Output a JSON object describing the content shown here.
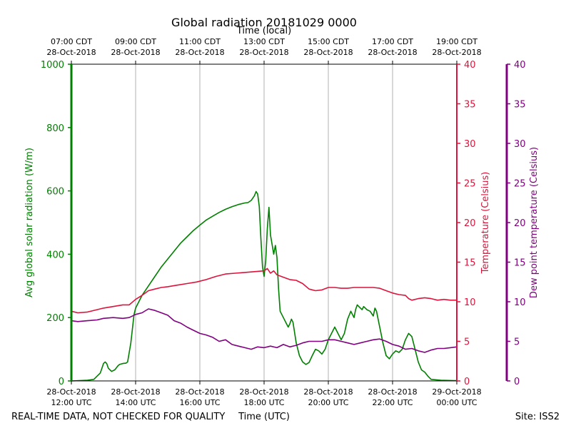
{
  "chart_data": {
    "type": "line",
    "title": "Global radiation 20181029 0000",
    "top_axis_label": "Time (local)",
    "xlabel": "Time (UTC)",
    "ylabel_left": "Avg global solar radiation (W/m)",
    "ylabel_right": "Temperature (Celsius)",
    "ylabel_far_right": "Dew point temperature (Celsius)",
    "footer_left": "REAL-TIME DATA, NOT CHECKED FOR QUALITY",
    "footer_right": "Site: ISS2",
    "x_range_hours": [
      0,
      12
    ],
    "ylim_left": [
      0,
      1000
    ],
    "ylim_right": [
      0,
      40
    ],
    "ylim_far_right": [
      0,
      40
    ],
    "left_ticks": [
      "0",
      "200",
      "400",
      "600",
      "800",
      "1000"
    ],
    "right_ticks": [
      "0",
      "5",
      "10",
      "15",
      "20",
      "25",
      "30",
      "35",
      "40"
    ],
    "bottom_ticks": [
      {
        "line1": "28-Oct-2018",
        "line2": "12:00 UTC"
      },
      {
        "line1": "28-Oct-2018",
        "line2": "14:00 UTC"
      },
      {
        "line1": "28-Oct-2018",
        "line2": "16:00 UTC"
      },
      {
        "line1": "28-Oct-2018",
        "line2": "18:00 UTC"
      },
      {
        "line1": "28-Oct-2018",
        "line2": "20:00 UTC"
      },
      {
        "line1": "28-Oct-2018",
        "line2": "22:00 UTC"
      },
      {
        "line1": "29-Oct-2018",
        "line2": "00:00 UTC"
      }
    ],
    "top_ticks": [
      {
        "line1": "07:00 CDT",
        "line2": "28-Oct-2018"
      },
      {
        "line1": "09:00 CDT",
        "line2": "28-Oct-2018"
      },
      {
        "line1": "11:00 CDT",
        "line2": "28-Oct-2018"
      },
      {
        "line1": "13:00 CDT",
        "line2": "28-Oct-2018"
      },
      {
        "line1": "15:00 CDT",
        "line2": "28-Oct-2018"
      },
      {
        "line1": "17:00 CDT",
        "line2": "28-Oct-2018"
      },
      {
        "line1": "19:00 CDT",
        "line2": "28-Oct-2018"
      }
    ],
    "grid": "vertical",
    "series": [
      {
        "name": "Avg global solar radiation",
        "axis": "left",
        "color": "#008000",
        "points": [
          [
            0,
            0
          ],
          [
            0.5,
            2
          ],
          [
            0.7,
            5
          ],
          [
            0.8,
            15
          ],
          [
            0.9,
            25
          ],
          [
            0.95,
            40
          ],
          [
            1.0,
            55
          ],
          [
            1.05,
            60
          ],
          [
            1.1,
            55
          ],
          [
            1.15,
            40
          ],
          [
            1.25,
            30
          ],
          [
            1.35,
            35
          ],
          [
            1.45,
            48
          ],
          [
            1.5,
            52
          ],
          [
            1.6,
            55
          ],
          [
            1.7,
            56
          ],
          [
            1.75,
            60
          ],
          [
            1.85,
            120
          ],
          [
            1.95,
            210
          ],
          [
            2.0,
            230
          ],
          [
            2.2,
            270
          ],
          [
            2.4,
            300
          ],
          [
            2.6,
            330
          ],
          [
            2.8,
            360
          ],
          [
            3.0,
            385
          ],
          [
            3.2,
            410
          ],
          [
            3.4,
            435
          ],
          [
            3.6,
            455
          ],
          [
            3.8,
            475
          ],
          [
            4.0,
            492
          ],
          [
            4.2,
            508
          ],
          [
            4.4,
            520
          ],
          [
            4.6,
            532
          ],
          [
            4.8,
            542
          ],
          [
            5.0,
            550
          ],
          [
            5.2,
            557
          ],
          [
            5.4,
            562
          ],
          [
            5.5,
            563
          ],
          [
            5.6,
            570
          ],
          [
            5.7,
            585
          ],
          [
            5.75,
            598
          ],
          [
            5.8,
            590
          ],
          [
            5.85,
            550
          ],
          [
            5.9,
            450
          ],
          [
            5.95,
            360
          ],
          [
            6.0,
            330
          ],
          [
            6.05,
            380
          ],
          [
            6.1,
            480
          ],
          [
            6.15,
            548
          ],
          [
            6.2,
            460
          ],
          [
            6.25,
            430
          ],
          [
            6.3,
            400
          ],
          [
            6.35,
            428
          ],
          [
            6.4,
            390
          ],
          [
            6.45,
            290
          ],
          [
            6.5,
            220
          ],
          [
            6.6,
            200
          ],
          [
            6.7,
            180
          ],
          [
            6.75,
            170
          ],
          [
            6.8,
            180
          ],
          [
            6.85,
            195
          ],
          [
            6.9,
            185
          ],
          [
            7.0,
            120
          ],
          [
            7.1,
            80
          ],
          [
            7.2,
            60
          ],
          [
            7.3,
            52
          ],
          [
            7.4,
            58
          ],
          [
            7.5,
            80
          ],
          [
            7.6,
            100
          ],
          [
            7.7,
            95
          ],
          [
            7.8,
            85
          ],
          [
            7.9,
            100
          ],
          [
            8.0,
            130
          ],
          [
            8.1,
            150
          ],
          [
            8.2,
            170
          ],
          [
            8.3,
            150
          ],
          [
            8.4,
            130
          ],
          [
            8.5,
            150
          ],
          [
            8.6,
            195
          ],
          [
            8.7,
            220
          ],
          [
            8.8,
            200
          ],
          [
            8.85,
            225
          ],
          [
            8.9,
            240
          ],
          [
            9.0,
            230
          ],
          [
            9.05,
            225
          ],
          [
            9.1,
            235
          ],
          [
            9.2,
            225
          ],
          [
            9.3,
            220
          ],
          [
            9.4,
            205
          ],
          [
            9.45,
            230
          ],
          [
            9.5,
            220
          ],
          [
            9.6,
            170
          ],
          [
            9.7,
            120
          ],
          [
            9.8,
            80
          ],
          [
            9.9,
            70
          ],
          [
            10.0,
            85
          ],
          [
            10.1,
            95
          ],
          [
            10.2,
            90
          ],
          [
            10.3,
            100
          ],
          [
            10.4,
            130
          ],
          [
            10.5,
            150
          ],
          [
            10.6,
            140
          ],
          [
            10.7,
            100
          ],
          [
            10.8,
            60
          ],
          [
            10.9,
            35
          ],
          [
            11.0,
            28
          ],
          [
            11.1,
            15
          ],
          [
            11.2,
            5
          ],
          [
            11.5,
            2
          ],
          [
            12.0,
            1
          ]
        ]
      },
      {
        "name": "Temperature",
        "axis": "right",
        "color": "#dc143c",
        "points": [
          [
            0,
            8.8
          ],
          [
            0.2,
            8.6
          ],
          [
            0.5,
            8.7
          ],
          [
            0.8,
            9.0
          ],
          [
            1.0,
            9.2
          ],
          [
            1.3,
            9.4
          ],
          [
            1.6,
            9.6
          ],
          [
            1.8,
            9.6
          ],
          [
            2.0,
            10.3
          ],
          [
            2.2,
            10.8
          ],
          [
            2.4,
            11.4
          ],
          [
            2.6,
            11.6
          ],
          [
            2.8,
            11.8
          ],
          [
            3.0,
            11.9
          ],
          [
            3.3,
            12.1
          ],
          [
            3.6,
            12.3
          ],
          [
            3.9,
            12.5
          ],
          [
            4.2,
            12.8
          ],
          [
            4.5,
            13.2
          ],
          [
            4.8,
            13.5
          ],
          [
            5.1,
            13.6
          ],
          [
            5.4,
            13.7
          ],
          [
            5.7,
            13.8
          ],
          [
            6.0,
            13.9
          ],
          [
            6.1,
            14.2
          ],
          [
            6.2,
            13.6
          ],
          [
            6.3,
            13.9
          ],
          [
            6.4,
            13.4
          ],
          [
            6.6,
            13.1
          ],
          [
            6.8,
            12.8
          ],
          [
            7.0,
            12.7
          ],
          [
            7.2,
            12.3
          ],
          [
            7.4,
            11.6
          ],
          [
            7.6,
            11.4
          ],
          [
            7.8,
            11.5
          ],
          [
            8.0,
            11.8
          ],
          [
            8.2,
            11.8
          ],
          [
            8.4,
            11.7
          ],
          [
            8.6,
            11.7
          ],
          [
            8.8,
            11.8
          ],
          [
            9.0,
            11.8
          ],
          [
            9.2,
            11.8
          ],
          [
            9.4,
            11.8
          ],
          [
            9.6,
            11.7
          ],
          [
            9.8,
            11.4
          ],
          [
            10.0,
            11.1
          ],
          [
            10.2,
            10.9
          ],
          [
            10.4,
            10.8
          ],
          [
            10.5,
            10.4
          ],
          [
            10.6,
            10.2
          ],
          [
            10.8,
            10.4
          ],
          [
            11.0,
            10.5
          ],
          [
            11.2,
            10.4
          ],
          [
            11.4,
            10.2
          ],
          [
            11.6,
            10.3
          ],
          [
            11.8,
            10.2
          ],
          [
            12.0,
            10.2
          ]
        ]
      },
      {
        "name": "Dew point temperature",
        "axis": "far_right",
        "color": "#800080",
        "points": [
          [
            0,
            7.6
          ],
          [
            0.2,
            7.5
          ],
          [
            0.5,
            7.6
          ],
          [
            0.8,
            7.7
          ],
          [
            1.0,
            7.9
          ],
          [
            1.3,
            8.0
          ],
          [
            1.6,
            7.9
          ],
          [
            1.8,
            8.0
          ],
          [
            2.0,
            8.4
          ],
          [
            2.2,
            8.6
          ],
          [
            2.4,
            9.1
          ],
          [
            2.6,
            8.9
          ],
          [
            2.8,
            8.6
          ],
          [
            3.0,
            8.3
          ],
          [
            3.2,
            7.6
          ],
          [
            3.4,
            7.3
          ],
          [
            3.6,
            6.8
          ],
          [
            3.8,
            6.4
          ],
          [
            4.0,
            6.0
          ],
          [
            4.2,
            5.8
          ],
          [
            4.4,
            5.5
          ],
          [
            4.6,
            5.0
          ],
          [
            4.8,
            5.2
          ],
          [
            5.0,
            4.6
          ],
          [
            5.2,
            4.4
          ],
          [
            5.4,
            4.2
          ],
          [
            5.6,
            4.0
          ],
          [
            5.8,
            4.3
          ],
          [
            6.0,
            4.2
          ],
          [
            6.2,
            4.4
          ],
          [
            6.4,
            4.2
          ],
          [
            6.6,
            4.6
          ],
          [
            6.8,
            4.3
          ],
          [
            7.0,
            4.5
          ],
          [
            7.2,
            4.8
          ],
          [
            7.4,
            5.0
          ],
          [
            7.6,
            5.0
          ],
          [
            7.8,
            5.0
          ],
          [
            8.0,
            5.2
          ],
          [
            8.2,
            5.2
          ],
          [
            8.4,
            5.0
          ],
          [
            8.6,
            4.8
          ],
          [
            8.8,
            4.6
          ],
          [
            9.0,
            4.8
          ],
          [
            9.2,
            5.0
          ],
          [
            9.4,
            5.2
          ],
          [
            9.6,
            5.3
          ],
          [
            9.8,
            5.0
          ],
          [
            10.0,
            4.6
          ],
          [
            10.2,
            4.4
          ],
          [
            10.4,
            4.0
          ],
          [
            10.6,
            4.1
          ],
          [
            10.8,
            3.8
          ],
          [
            11.0,
            3.6
          ],
          [
            11.2,
            3.9
          ],
          [
            11.4,
            4.1
          ],
          [
            11.6,
            4.1
          ],
          [
            11.8,
            4.2
          ],
          [
            12.0,
            4.3
          ]
        ]
      }
    ]
  },
  "colors": {
    "left_axis": "#008000",
    "right_axis": "#dc143c",
    "far_right_axis": "#800080",
    "grid": "#b0b0b0"
  }
}
